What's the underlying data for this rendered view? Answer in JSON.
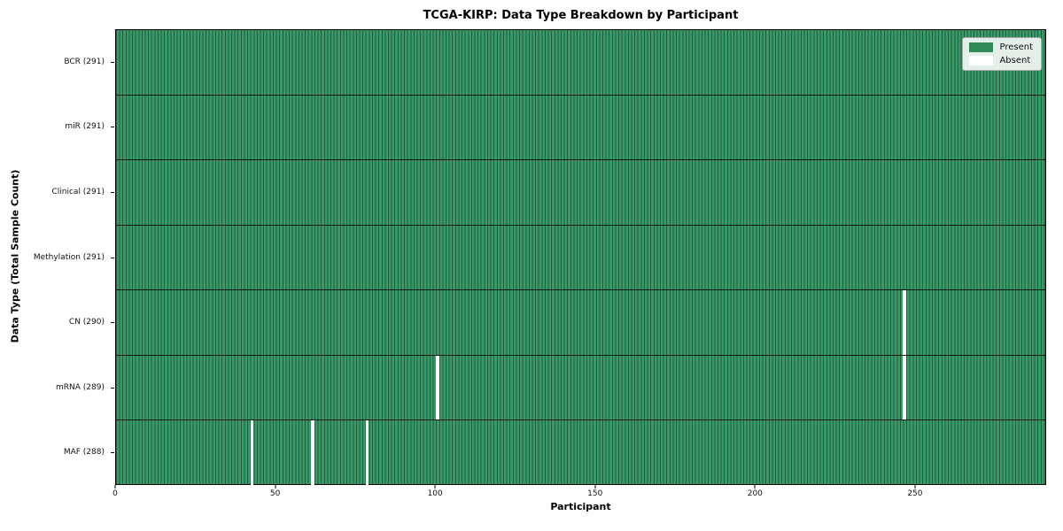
{
  "chart_data": {
    "type": "heatmap",
    "title": "TCGA-KIRP: Data Type Breakdown by Participant",
    "xlabel": "Participant",
    "ylabel": "Data Type (Total Sample Count)",
    "x_ticks": [
      0,
      50,
      100,
      150,
      200,
      250
    ],
    "x_range": [
      0,
      291
    ],
    "n_participants": 291,
    "grid": false,
    "legend_position": "upper right",
    "rows": [
      {
        "data_type": "BCR",
        "label": "BCR (291)",
        "present_count": 291,
        "absent_participants": []
      },
      {
        "data_type": "miR",
        "label": "miR (291)",
        "present_count": 291,
        "absent_participants": []
      },
      {
        "data_type": "Clinical",
        "label": "Clinical (291)",
        "present_count": 291,
        "absent_participants": []
      },
      {
        "data_type": "Methylation",
        "label": "Methylation (291)",
        "present_count": 291,
        "absent_participants": []
      },
      {
        "data_type": "CN",
        "label": "CN (290)",
        "present_count": 290,
        "absent_participants": [
          246
        ]
      },
      {
        "data_type": "mRNA",
        "label": "mRNA (289)",
        "present_count": 289,
        "absent_participants": [
          100,
          246
        ]
      },
      {
        "data_type": "MAF",
        "label": "MAF (288)",
        "present_count": 288,
        "absent_participants": [
          42,
          61,
          78
        ]
      }
    ],
    "legend": {
      "entries": [
        {
          "label": "Present",
          "color": "#2e8b57"
        },
        {
          "label": "Absent",
          "color": "#ffffff"
        }
      ]
    },
    "colors": {
      "present_fill": "#3a9a6a",
      "cell_edge": "#1e5c3a",
      "legend_present": "#2e8b57",
      "absent": "#ffffff",
      "row_separator": "#000000"
    }
  }
}
